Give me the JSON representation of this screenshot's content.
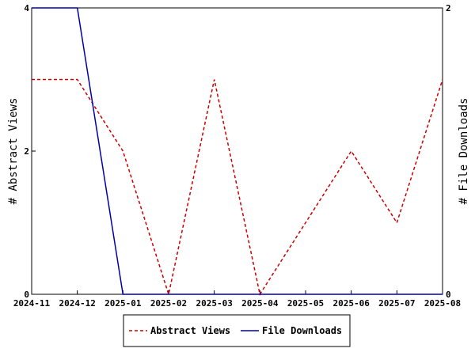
{
  "chart_data": {
    "type": "line",
    "x": [
      "2024-11",
      "2024-12",
      "2025-01",
      "2025-02",
      "2025-03",
      "2025-04",
      "2025-05",
      "2025-06",
      "2025-07",
      "2025-08"
    ],
    "series": [
      {
        "name": "Abstract Views",
        "axis": "left",
        "style": "dashed",
        "color": "#cc0000",
        "values": [
          3,
          3,
          2,
          0,
          3,
          0,
          1,
          2,
          1,
          3
        ]
      },
      {
        "name": "File Downloads",
        "axis": "right",
        "style": "solid",
        "color": "#0000aa",
        "values": [
          2,
          2,
          0,
          0,
          0,
          0,
          0,
          0,
          0,
          0
        ]
      }
    ],
    "ylabel": "# Abstract Views",
    "y2label": "# File Downloads",
    "ylim": [
      0,
      4
    ],
    "y2lim": [
      0,
      2
    ],
    "yticks": [
      "0",
      "2",
      "4"
    ],
    "y2ticks": [
      "0",
      "2"
    ],
    "grid": false,
    "legend": "bottom"
  }
}
